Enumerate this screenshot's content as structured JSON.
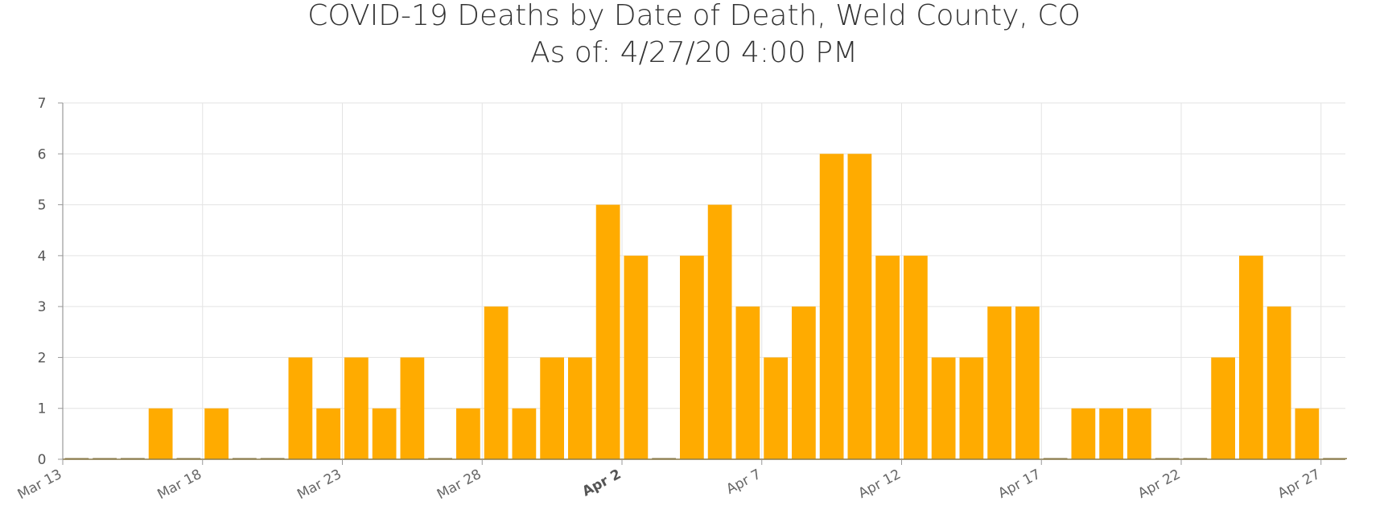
{
  "chart_data": {
    "type": "bar",
    "title": "COVID-19 Deaths by Date of Death, Weld County, CO",
    "subtitle": "As of: 4/27/20 4:00 PM",
    "x_start": "Mar 13",
    "dates": [
      "Mar 13",
      "Mar 14",
      "Mar 15",
      "Mar 16",
      "Mar 17",
      "Mar 18",
      "Mar 19",
      "Mar 20",
      "Mar 21",
      "Mar 22",
      "Mar 23",
      "Mar 24",
      "Mar 25",
      "Mar 26",
      "Mar 27",
      "Mar 28",
      "Mar 29",
      "Mar 30",
      "Mar 31",
      "Apr 1",
      "Apr 2",
      "Apr 3",
      "Apr 4",
      "Apr 5",
      "Apr 6",
      "Apr 7",
      "Apr 8",
      "Apr 9",
      "Apr 10",
      "Apr 11",
      "Apr 12",
      "Apr 13",
      "Apr 14",
      "Apr 15",
      "Apr 16",
      "Apr 17",
      "Apr 18",
      "Apr 19",
      "Apr 20",
      "Apr 21",
      "Apr 22",
      "Apr 23",
      "Apr 24",
      "Apr 25",
      "Apr 26",
      "Apr 27"
    ],
    "values": [
      0,
      0,
      0,
      1,
      0,
      1,
      0,
      0,
      2,
      1,
      2,
      1,
      2,
      0,
      1,
      3,
      1,
      2,
      2,
      5,
      4,
      0,
      4,
      5,
      3,
      2,
      3,
      6,
      6,
      4,
      4,
      2,
      2,
      3,
      3,
      0,
      1,
      1,
      1,
      0,
      0,
      2,
      4,
      3,
      1,
      0
    ],
    "x_tick_labels": [
      "Mar 13",
      "Mar 18",
      "Mar 23",
      "Mar 28",
      "Apr 2",
      "Apr 7",
      "Apr 12",
      "Apr 17",
      "Apr 22",
      "Apr 27"
    ],
    "bold_tick": "Apr 2",
    "y_ticks": [
      "0",
      "1",
      "2",
      "3",
      "4",
      "5",
      "6",
      "7"
    ],
    "ylim": [
      0,
      7
    ],
    "grid": true,
    "colors": {
      "bar": "#FFAB00",
      "zero_line": "#8a7a4a",
      "grid": "#e3e3e3",
      "axis": "#999999"
    }
  }
}
